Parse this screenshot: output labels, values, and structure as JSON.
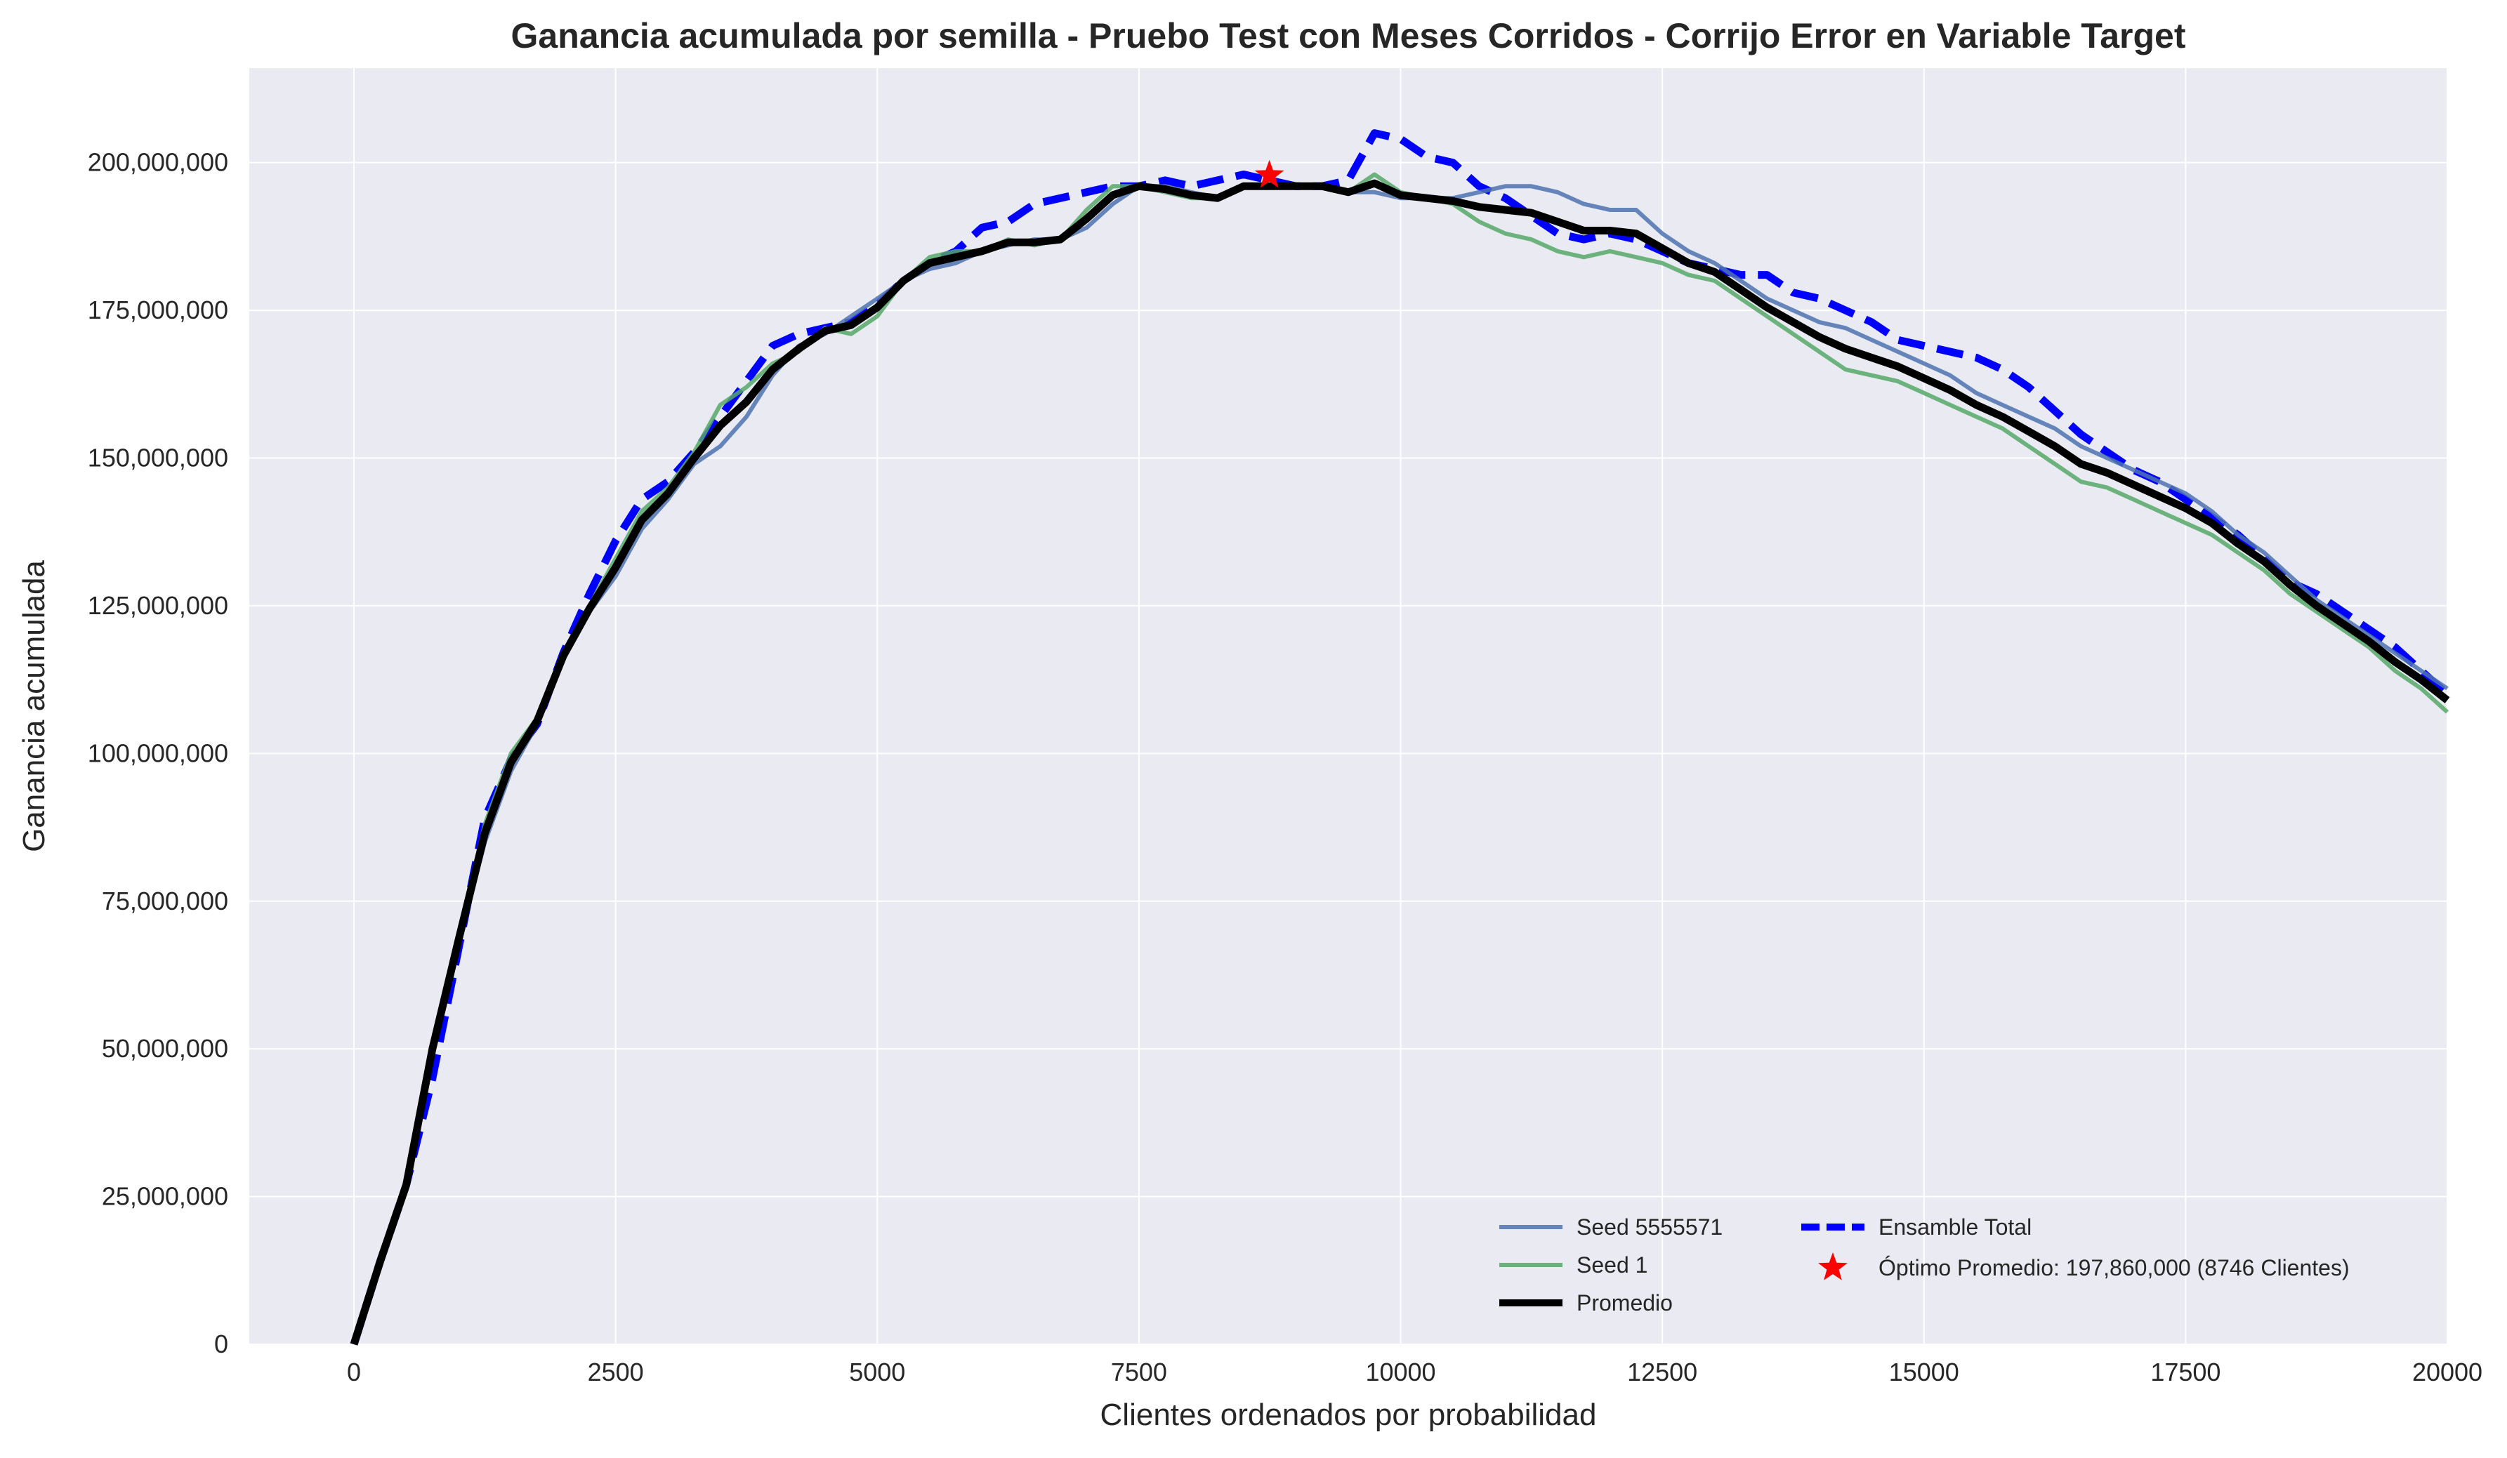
{
  "chart_data": {
    "type": "line",
    "title": "Ganancia acumulada por semilla - Pruebo Test con Meses Corridos - Corrijo Error en Variable Target",
    "xlabel": "Clientes ordenados por probabilidad",
    "ylabel": "Ganancia acumulada",
    "xlim": [
      -1000,
      20000
    ],
    "ylim": [
      0,
      216000000
    ],
    "xticks": [
      0,
      2500,
      5000,
      7500,
      10000,
      12500,
      15000,
      17500,
      20000
    ],
    "xtick_labels": [
      "0",
      "2500",
      "5000",
      "7500",
      "10000",
      "12500",
      "15000",
      "17500",
      "20000"
    ],
    "yticks": [
      0,
      25000000,
      50000000,
      75000000,
      100000000,
      125000000,
      150000000,
      175000000,
      200000000
    ],
    "ytick_labels": [
      "0",
      "25,000,000",
      "50,000,000",
      "75,000,000",
      "100,000,000",
      "125,000,000",
      "150,000,000",
      "175,000,000",
      "200,000,000"
    ],
    "grid": true,
    "legend_position": "bottom-right",
    "x": [
      0,
      250,
      500,
      750,
      1000,
      1250,
      1500,
      1750,
      2000,
      2250,
      2500,
      2750,
      3000,
      3250,
      3500,
      3750,
      4000,
      4250,
      4500,
      4750,
      5000,
      5250,
      5500,
      5750,
      6000,
      6250,
      6500,
      6750,
      7000,
      7250,
      7500,
      7750,
      8000,
      8250,
      8500,
      8750,
      9000,
      9250,
      9500,
      9750,
      10000,
      10250,
      10500,
      10750,
      11000,
      11250,
      11500,
      11750,
      12000,
      12250,
      12500,
      12750,
      13000,
      13250,
      13500,
      13750,
      14000,
      14250,
      14500,
      14750,
      15000,
      15250,
      15500,
      15750,
      16000,
      16250,
      16500,
      16750,
      17000,
      17250,
      17500,
      17750,
      18000,
      18250,
      18500,
      18750,
      19000,
      19250,
      19500,
      19750,
      20000
    ],
    "series": [
      {
        "name": "Seed 5555571",
        "color": "#4c72b0",
        "style": "solid",
        "values": [
          0,
          14000000,
          27000000,
          50000000,
          68000000,
          85000000,
          97000000,
          105000000,
          116000000,
          124000000,
          130000000,
          138000000,
          143000000,
          149000000,
          152000000,
          157000000,
          164000000,
          169000000,
          171000000,
          174000000,
          177000000,
          180000000,
          182000000,
          183000000,
          185000000,
          186000000,
          187000000,
          187000000,
          189000000,
          193000000,
          196000000,
          196000000,
          195000000,
          194000000,
          196000000,
          196000000,
          196000000,
          196000000,
          195000000,
          195000000,
          194000000,
          194000000,
          194000000,
          195000000,
          196000000,
          196000000,
          195000000,
          193000000,
          192000000,
          192000000,
          188000000,
          185000000,
          183000000,
          180000000,
          177000000,
          175000000,
          173000000,
          172000000,
          170000000,
          168000000,
          166000000,
          164000000,
          161000000,
          159000000,
          157000000,
          155000000,
          152000000,
          150000000,
          148000000,
          146000000,
          144000000,
          141000000,
          137000000,
          134000000,
          130000000,
          126000000,
          123000000,
          120000000,
          117000000,
          114000000,
          111000000
        ]
      },
      {
        "name": "Seed 1",
        "color": "#55a868",
        "style": "solid",
        "values": [
          0,
          14000000,
          27000000,
          50000000,
          69000000,
          88000000,
          100000000,
          106000000,
          117000000,
          125000000,
          133000000,
          141000000,
          145000000,
          151000000,
          159000000,
          162000000,
          166000000,
          168000000,
          172000000,
          171000000,
          174000000,
          180000000,
          184000000,
          185000000,
          185000000,
          187000000,
          186000000,
          187000000,
          192000000,
          196000000,
          196000000,
          195000000,
          194000000,
          194000000,
          196000000,
          196000000,
          196000000,
          196000000,
          195000000,
          198000000,
          195000000,
          194000000,
          193000000,
          190000000,
          188000000,
          187000000,
          185000000,
          184000000,
          185000000,
          184000000,
          183000000,
          181000000,
          180000000,
          177000000,
          174000000,
          171000000,
          168000000,
          165000000,
          164000000,
          163000000,
          161000000,
          159000000,
          157000000,
          155000000,
          152000000,
          149000000,
          146000000,
          145000000,
          143000000,
          141000000,
          139000000,
          137000000,
          134000000,
          131000000,
          127000000,
          124000000,
          121000000,
          118000000,
          114000000,
          111000000,
          107000000
        ]
      },
      {
        "name": "Promedio",
        "color": "#000000",
        "style": "solid-thick",
        "values": [
          0,
          14000000,
          27000000,
          50000000,
          68500000,
          86500000,
          98500000,
          105500000,
          116500000,
          124500000,
          131500000,
          139500000,
          144000000,
          150000000,
          155500000,
          159500000,
          165000000,
          168500000,
          171500000,
          172500000,
          175500000,
          180000000,
          183000000,
          184000000,
          185000000,
          186500000,
          186500000,
          187000000,
          190500000,
          194500000,
          196000000,
          195500000,
          194500000,
          194000000,
          196000000,
          196000000,
          196000000,
          196000000,
          195000000,
          196500000,
          194500000,
          194000000,
          193500000,
          192500000,
          192000000,
          191500000,
          190000000,
          188500000,
          188500000,
          188000000,
          185500000,
          183000000,
          181500000,
          178500000,
          175500000,
          173000000,
          170500000,
          168500000,
          167000000,
          165500000,
          163500000,
          161500000,
          159000000,
          157000000,
          154500000,
          152000000,
          149000000,
          147500000,
          145500000,
          143500000,
          141500000,
          139000000,
          135500000,
          132500000,
          128500000,
          125000000,
          122000000,
          119000000,
          115500000,
          112500000,
          109000000
        ]
      },
      {
        "name": "Ensamble Total",
        "color": "#0000ff",
        "style": "dashed",
        "values": [
          0,
          14000000,
          27000000,
          45000000,
          67000000,
          89000000,
          99000000,
          105000000,
          117000000,
          127000000,
          136000000,
          143000000,
          146000000,
          151000000,
          157000000,
          163000000,
          169000000,
          171000000,
          172000000,
          173000000,
          176000000,
          180000000,
          183000000,
          185000000,
          189000000,
          190000000,
          193000000,
          194000000,
          195000000,
          196000000,
          196000000,
          197000000,
          196000000,
          197000000,
          198000000,
          197000000,
          196000000,
          196000000,
          197000000,
          205000000,
          204000000,
          201000000,
          200000000,
          196000000,
          194000000,
          191000000,
          188000000,
          187000000,
          188000000,
          187000000,
          185000000,
          183000000,
          182000000,
          181000000,
          181000000,
          178000000,
          177000000,
          175000000,
          173000000,
          170000000,
          169000000,
          168000000,
          167000000,
          165000000,
          162000000,
          158000000,
          154000000,
          151000000,
          148000000,
          146000000,
          143000000,
          140000000,
          137000000,
          133000000,
          129000000,
          127000000,
          124000000,
          121000000,
          118000000,
          114000000,
          110000000
        ]
      }
    ],
    "marker": {
      "label": "Óptimo Promedio: 197,860,000 (8746 Clientes)",
      "x": 8746,
      "y": 197860000,
      "color": "#ff0000",
      "symbol": "star"
    }
  }
}
